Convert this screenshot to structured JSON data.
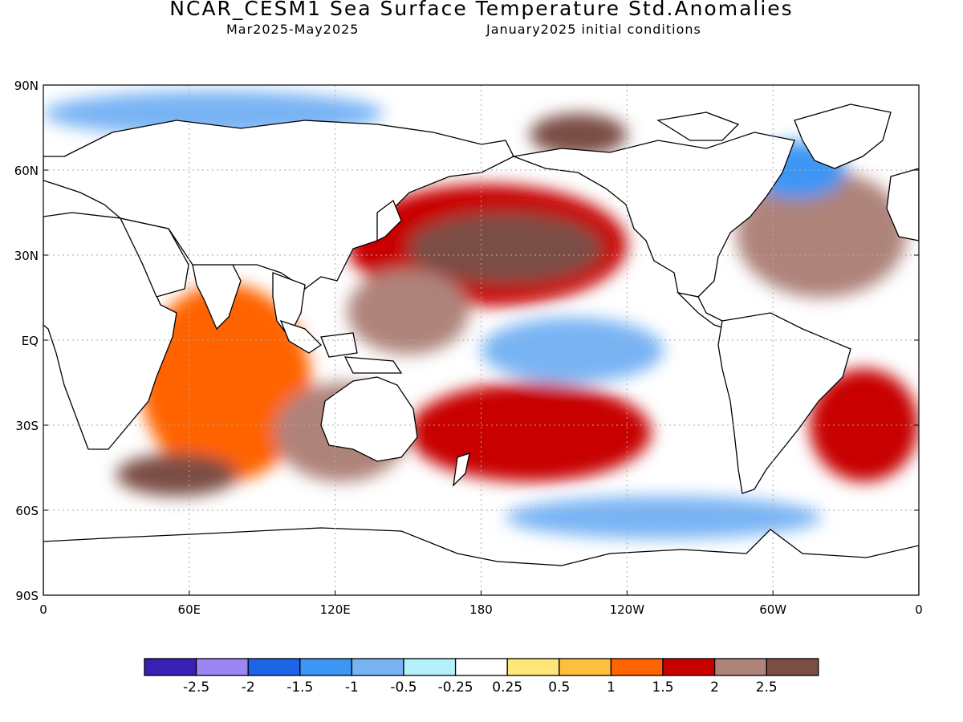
{
  "header": {
    "title": "NCAR_CESM1 Sea Surface Temperature Std.Anomalies",
    "period": "Mar2025-May2025",
    "init": "January2025 initial conditions"
  },
  "axes": {
    "lat_labels": [
      {
        "lat": 90,
        "label": "90N"
      },
      {
        "lat": 60,
        "label": "60N"
      },
      {
        "lat": 30,
        "label": "30N"
      },
      {
        "lat": 0,
        "label": "EQ"
      },
      {
        "lat": -30,
        "label": "30S"
      },
      {
        "lat": -60,
        "label": "60S"
      },
      {
        "lat": -90,
        "label": "90S"
      }
    ],
    "lon_labels": [
      {
        "lon": 0,
        "label": "0"
      },
      {
        "lon": 60,
        "label": "60E"
      },
      {
        "lon": 120,
        "label": "120E"
      },
      {
        "lon": 180,
        "label": "180"
      },
      {
        "lon": 240,
        "label": "120W"
      },
      {
        "lon": 300,
        "label": "60W"
      },
      {
        "lon": 360,
        "label": "0"
      }
    ]
  },
  "legend": {
    "colors": [
      "#3a1fb4",
      "#9b86f4",
      "#1e64e6",
      "#3c96f4",
      "#78b4f4",
      "#b4f0fa",
      "#ffffff",
      "#ffe678",
      "#ffbe3c",
      "#ff6400",
      "#c80000",
      "#ae837a",
      "#7a4e44"
    ],
    "labels": [
      "-2.5",
      "-2",
      "-1.5",
      "-1",
      "-0.5",
      "-0.25",
      "0.25",
      "0.5",
      "1",
      "1.5",
      "2",
      "2.5"
    ]
  },
  "anomaly_regions": [
    {
      "name": "north-pacific-warm",
      "lon": [
        125,
        240
      ],
      "lat": [
        12,
        55
      ],
      "level": 1.8
    },
    {
      "name": "north-pacific-core",
      "lon": [
        150,
        230
      ],
      "lat": [
        20,
        45
      ],
      "level": 2.6
    },
    {
      "name": "west-pacific-warm",
      "lon": [
        125,
        175
      ],
      "lat": [
        -5,
        25
      ],
      "level": 2.2
    },
    {
      "name": "south-pacific-warm",
      "lon": [
        150,
        250
      ],
      "lat": [
        -50,
        -15
      ],
      "level": 1.9
    },
    {
      "name": "equatorial-pacific-cool",
      "lon": [
        180,
        255
      ],
      "lat": [
        -15,
        8
      ],
      "level": -0.8
    },
    {
      "name": "north-atlantic-warm",
      "lon": [
        285,
        355
      ],
      "lat": [
        15,
        60
      ],
      "level": 2.0
    },
    {
      "name": "south-atlantic-warm",
      "lon": [
        315,
        360
      ],
      "lat": [
        -50,
        -10
      ],
      "level": 1.6
    },
    {
      "name": "indian-ocean-warm",
      "lon": [
        40,
        110
      ],
      "lat": [
        -50,
        20
      ],
      "level": 1.3
    },
    {
      "name": "southern-indian-core",
      "lon": [
        30,
        80
      ],
      "lat": [
        -55,
        -40
      ],
      "level": 2.6
    },
    {
      "name": "australia-warm",
      "lon": [
        95,
        150
      ],
      "lat": [
        -50,
        -15
      ],
      "level": 2.0
    },
    {
      "name": "southern-ocean-cool",
      "lon": [
        190,
        320
      ],
      "lat": [
        -70,
        -55
      ],
      "level": -0.9
    },
    {
      "name": "arctic-cool",
      "lon": [
        0,
        140
      ],
      "lat": [
        72,
        88
      ],
      "level": -0.6
    },
    {
      "name": "beaufort-warm",
      "lon": [
        200,
        240
      ],
      "lat": [
        65,
        80
      ],
      "level": 2.5
    },
    {
      "name": "labrador-cool",
      "lon": [
        290,
        330
      ],
      "lat": [
        50,
        70
      ],
      "level": -1.3
    }
  ]
}
